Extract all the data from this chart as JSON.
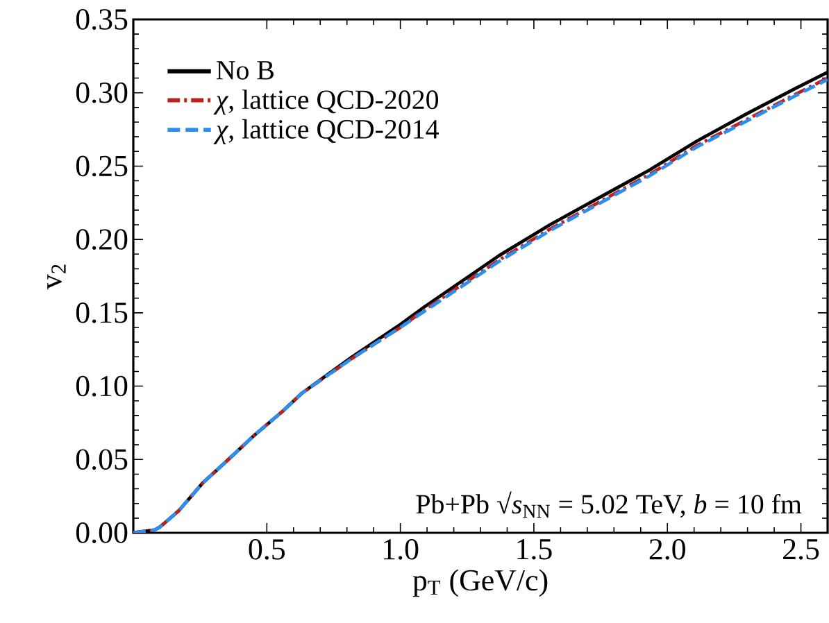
{
  "chart_data": {
    "type": "line",
    "xlabel": "p$_{T}$ (GeV/c)",
    "ylabel": "v$_{2}$",
    "x": [
      0,
      0.08,
      0.1,
      0.17,
      0.26,
      0.35,
      0.45,
      0.56,
      0.63,
      0.82,
      1.0,
      1.09,
      1.37,
      1.56,
      1.74,
      1.93,
      2.11,
      2.3,
      2.48,
      2.6
    ],
    "series": [
      {
        "name": "No B",
        "color": "#000000",
        "line_style": "solid",
        "values": [
          0,
          0.002,
          0.004,
          0.015,
          0.034,
          0.049,
          0.066,
          0.083,
          0.095,
          0.12,
          0.142,
          0.154,
          0.189,
          0.21,
          0.228,
          0.247,
          0.267,
          0.286,
          0.303,
          0.314
        ]
      },
      {
        "name": "*χ*,  lattice QCD-2020",
        "color": "#c0201c",
        "line_style": "dashdot",
        "values": [
          0,
          0.002,
          0.004,
          0.015,
          0.034,
          0.049,
          0.066,
          0.083,
          0.095,
          0.119,
          0.14,
          0.152,
          0.186,
          0.207,
          0.225,
          0.244,
          0.264,
          0.282,
          0.299,
          0.31
        ]
      },
      {
        "name": "*χ*,  lattice QCD-2014",
        "color": "#2a8ff0",
        "line_style": "dashed",
        "values": [
          0,
          0.002,
          0.004,
          0.015,
          0.034,
          0.049,
          0.066,
          0.083,
          0.095,
          0.119,
          0.14,
          0.151,
          0.185,
          0.206,
          0.224,
          0.243,
          0.263,
          0.281,
          0.298,
          0.309
        ]
      }
    ],
    "xlim": [
      0,
      2.6
    ],
    "ylim": [
      0,
      0.35
    ],
    "xticks": [
      0.5,
      {
        "value": 1.0,
        "label": "1.0"
      },
      1.5,
      {
        "value": 2.0,
        "label": "2.0"
      },
      2.5
    ],
    "yticks": [
      {
        "value": 0,
        "label": "0.00"
      },
      0.05,
      {
        "value": 0.1,
        "label": "0.10"
      },
      0.15,
      {
        "value": 0.2,
        "label": "0.20"
      },
      0.25,
      {
        "value": 0.3,
        "label": "0.30"
      },
      0.35
    ],
    "legend": "top left",
    "grid": false,
    "marker": "none",
    "annotations": [
      "Pb+Pb √*s*$_{NN}$ = 5.02 TeV, *b* = 10 fm"
    ]
  }
}
